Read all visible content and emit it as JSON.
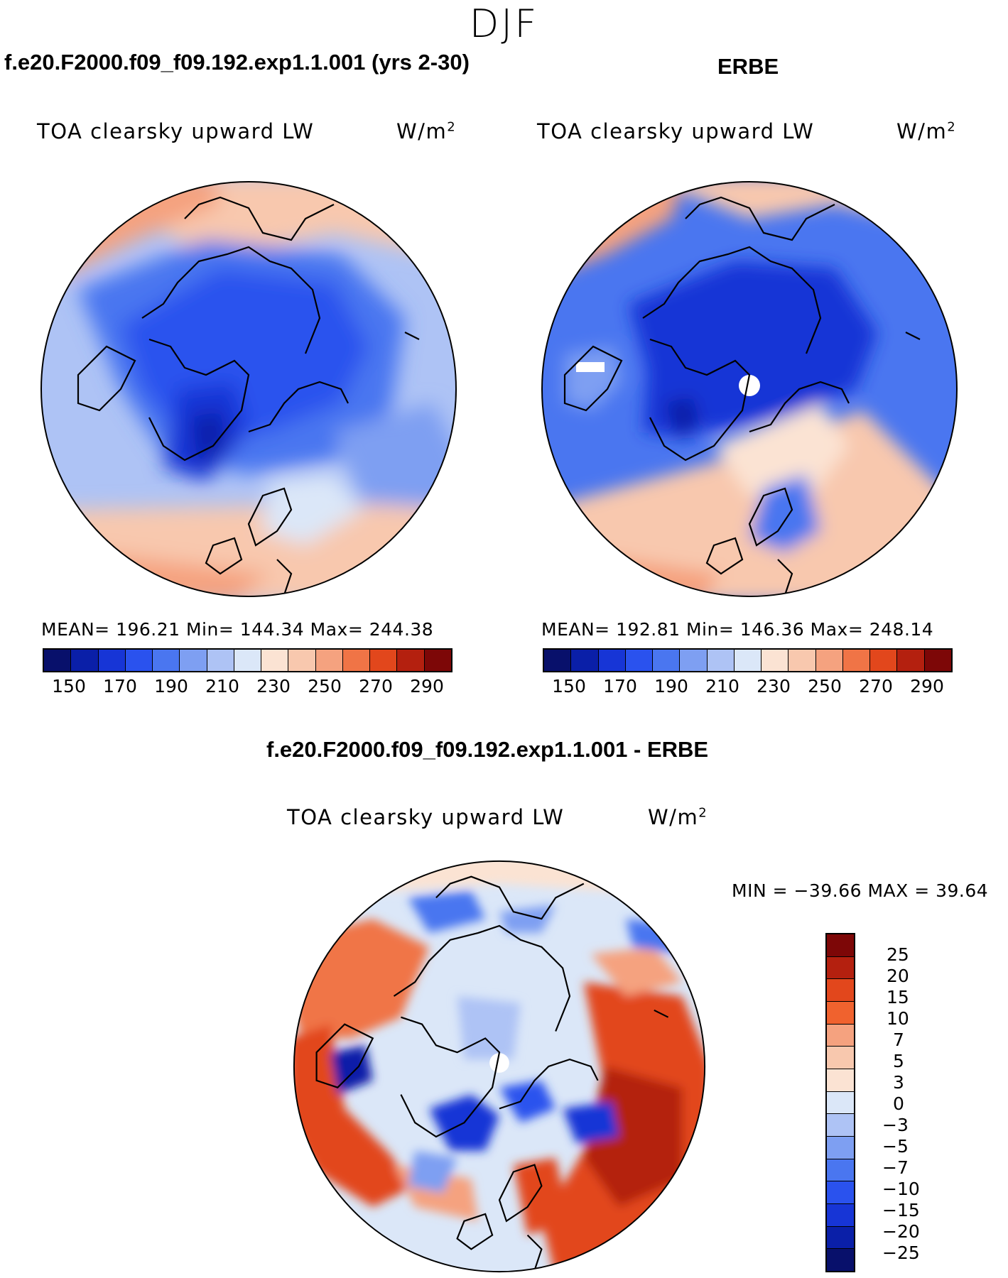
{
  "season": "DJF",
  "panels": [
    {
      "title": "f.e20.F2000.f09_f09.192.exp1.1.001 (yrs 2-30)",
      "variable": "TOA clearsky upward LW",
      "units_base": "W/m",
      "units_sup": "2",
      "stats": "MEAN= 196.21   Min= 144.34   Max= 244.38",
      "colorbar_ticks": [
        "150",
        "170",
        "190",
        "210",
        "230",
        "250",
        "270",
        "290"
      ]
    },
    {
      "title": "ERBE",
      "variable": "TOA clearsky upward LW",
      "units_base": "W/m",
      "units_sup": "2",
      "stats": "MEAN= 192.81   Min= 146.36   Max= 248.14",
      "colorbar_ticks": [
        "150",
        "170",
        "190",
        "210",
        "230",
        "250",
        "270",
        "290"
      ]
    }
  ],
  "difference": {
    "title": "f.e20.F2000.f09_f09.192.exp1.1.001 - ERBE",
    "variable": "TOA clearsky upward LW",
    "units_base": "W/m",
    "units_sup": "2",
    "stats": "MIN = −39.66 MAX =   39.64",
    "colorbar_ticks": [
      "25",
      "20",
      "15",
      "10",
      "7",
      "5",
      "3",
      "0",
      "−3",
      "−5",
      "−7",
      "−10",
      "−15",
      "−20",
      "−25"
    ]
  },
  "colors": {
    "abs_scale": [
      "#08106b",
      "#0a1fa8",
      "#1735d6",
      "#2a52ee",
      "#4a76f0",
      "#7e9ff2",
      "#aec3f5",
      "#dbe7f8",
      "#fbe3d3",
      "#f8c8ae",
      "#f5a27f",
      "#f07446",
      "#e2471c",
      "#b4200f",
      "#7d0707"
    ],
    "diff_scale": [
      "#7d0707",
      "#b4200f",
      "#e2471c",
      "#f0622e",
      "#f5a27f",
      "#f8c8ae",
      "#fbe3d3",
      "#dbe7f8",
      "#aec3f5",
      "#7e9ff2",
      "#4a76f0",
      "#2a52ee",
      "#1735d6",
      "#0a1fa8",
      "#08106b"
    ]
  }
}
